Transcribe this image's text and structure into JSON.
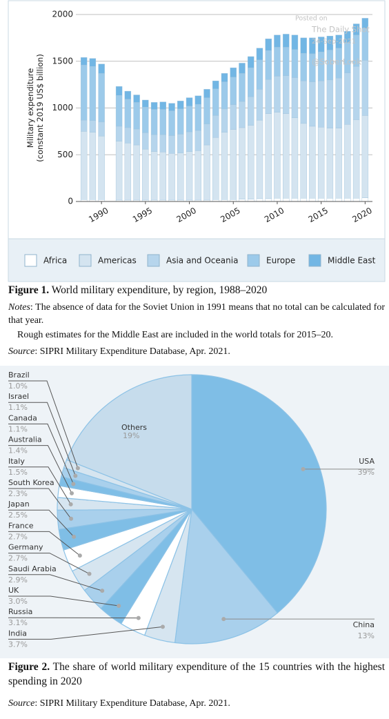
{
  "chart_data": [
    {
      "type": "bar",
      "stacked": true,
      "y_label": [
        "Military expenditure",
        "(constant 2019 US$ billion)"
      ],
      "x": [
        1988,
        1989,
        1990,
        1992,
        1993,
        1994,
        1995,
        1996,
        1997,
        1998,
        1999,
        2000,
        2001,
        2002,
        2003,
        2004,
        2005,
        2006,
        2007,
        2008,
        2009,
        2010,
        2011,
        2012,
        2013,
        2014,
        2015,
        2016,
        2017,
        2018,
        2019,
        2020
      ],
      "xlim": [
        1987.4,
        2020.6
      ],
      "xticks": [
        1990,
        1995,
        2000,
        2005,
        2010,
        2015,
        2020
      ],
      "ylim": [
        0,
        2000
      ],
      "yticks": [
        0,
        500,
        1000,
        1500,
        2000
      ],
      "grid": true,
      "legend": "bottom",
      "series": [
        {
          "name": "Africa",
          "color": "#ffffff",
          "values": [
            20,
            20,
            20,
            15,
            15,
            15,
            15,
            15,
            15,
            15,
            15,
            15,
            15,
            15,
            20,
            20,
            20,
            25,
            25,
            30,
            30,
            35,
            35,
            35,
            35,
            35,
            35,
            35,
            35,
            35,
            35,
            40
          ]
        },
        {
          "name": "Americas",
          "color": "#d4e4f0",
          "values": [
            730,
            720,
            680,
            630,
            610,
            590,
            545,
            520,
            515,
            500,
            505,
            520,
            530,
            590,
            665,
            720,
            750,
            765,
            790,
            840,
            910,
            920,
            905,
            860,
            800,
            770,
            760,
            750,
            750,
            790,
            840,
            880
          ]
        },
        {
          "name": "Asia and Oceania",
          "color": "#b6d5ec",
          "values": [
            120,
            125,
            150,
            160,
            165,
            170,
            175,
            180,
            185,
            190,
            200,
            210,
            215,
            225,
            235,
            250,
            265,
            280,
            305,
            330,
            365,
            385,
            405,
            430,
            455,
            475,
            495,
            515,
            535,
            550,
            570,
            590
          ]
        },
        {
          "name": "Europe",
          "color": "#9ccaea",
          "values": [
            590,
            580,
            520,
            330,
            305,
            285,
            275,
            270,
            270,
            265,
            270,
            275,
            280,
            280,
            285,
            290,
            295,
            300,
            310,
            315,
            310,
            310,
            305,
            300,
            295,
            300,
            310,
            320,
            320,
            325,
            335,
            340
          ]
        },
        {
          "name": "Middle East",
          "color": "#72b6e4",
          "values": [
            80,
            85,
            100,
            95,
            85,
            80,
            75,
            75,
            80,
            80,
            85,
            90,
            90,
            90,
            85,
            90,
            100,
            110,
            120,
            125,
            125,
            130,
            140,
            155,
            165,
            170,
            160,
            150,
            140,
            120,
            120,
            110
          ]
        }
      ]
    },
    {
      "type": "pie",
      "categories": [
        "USA",
        "China",
        "India",
        "Russia",
        "UK",
        "Saudi Arabia",
        "Germany",
        "France",
        "Japan",
        "South Korea",
        "Italy",
        "Australia",
        "Canada",
        "Israel",
        "Brazil",
        "Others"
      ],
      "values": [
        39,
        13,
        3.7,
        3.1,
        3.0,
        2.9,
        2.7,
        2.7,
        2.5,
        2.3,
        1.5,
        1.4,
        1.1,
        1.1,
        1.0,
        19
      ],
      "value_labels": [
        "39%",
        "13%",
        "3.7%",
        "3.1%",
        "3.0%",
        "2.9%",
        "2.7%",
        "2.7%",
        "2.5%",
        "2.3%",
        "1.5%",
        "1.4%",
        "1.1%",
        "1.1%",
        "1.0%",
        "19%"
      ],
      "colors": [
        "#7fbee6",
        "#a9d0ec",
        "#d6e5f0",
        "#ffffff",
        "#7fbee6",
        "#a9d0ec",
        "#d6e5f0",
        "#ffffff",
        "#7fbee6",
        "#a9d0ec",
        "#d6e5f0",
        "#ffffff",
        "#7fbee6",
        "#a9d0ec",
        "#d6e5f0",
        "#c6dcec"
      ]
    }
  ],
  "watermark": [
    "Posted on",
    "The Daily Shot",
    "24-Sep-2021",
    "@SoberLook"
  ],
  "figure1": {
    "label": "Figure 1.",
    "caption": "World military expenditure, by region, 1988–2020",
    "notes_label": "Notes",
    "notes": ": The absence of data for the Soviet Union in 1991 means that no total can be calculated for that year.",
    "notes2": "Rough estimates for the Middle East are included in the world totals for 2015–20.",
    "source_label": "Source",
    "source": ": SIPRI Military Expenditure Database, Apr. 2021."
  },
  "figure2": {
    "label": "Figure 2.",
    "caption": "The share of world military expenditure of the 15 countries with the highest spending in 2020",
    "source_label": "Source",
    "source": ": SIPRI Military Expenditure Database, Apr. 2021."
  }
}
